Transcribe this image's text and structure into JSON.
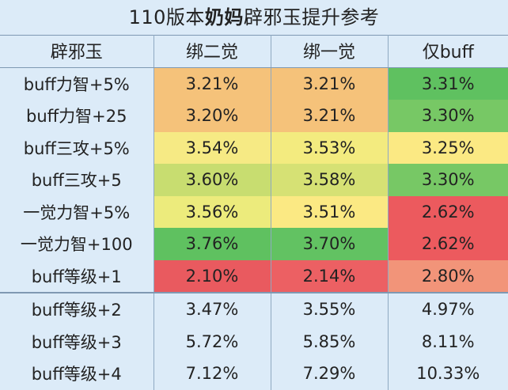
{
  "title": {
    "prefix": "110版本",
    "bold": "奶妈",
    "suffix": "辟邪玉提升参考"
  },
  "headers": [
    "辟邪玉",
    "绑二觉",
    "绑一觉",
    "仅buff"
  ],
  "rows": [
    {
      "label": "buff力智+5%",
      "values": [
        "3.21%",
        "3.21%",
        "3.31%"
      ],
      "colors": [
        "#f5c27a",
        "#f5c27a",
        "#5fc160"
      ]
    },
    {
      "label": "buff力智+25",
      "values": [
        "3.20%",
        "3.21%",
        "3.30%"
      ],
      "colors": [
        "#f5c27a",
        "#f5c27a",
        "#77c865"
      ]
    },
    {
      "label": "buff三攻+5%",
      "values": [
        "3.54%",
        "3.53%",
        "3.25%"
      ],
      "colors": [
        "#f6ea84",
        "#f3eb7f",
        "#fbe983"
      ]
    },
    {
      "label": "buff三攻+5",
      "values": [
        "3.60%",
        "3.58%",
        "3.30%"
      ],
      "colors": [
        "#c8dd70",
        "#d6e174",
        "#77c865"
      ]
    },
    {
      "label": "一觉力智+5%",
      "values": [
        "3.56%",
        "3.51%",
        "2.62%"
      ],
      "colors": [
        "#eceb7c",
        "#fbe983",
        "#ec5a5e"
      ]
    },
    {
      "label": "一觉力智+100",
      "values": [
        "3.76%",
        "3.70%",
        "2.62%"
      ],
      "colors": [
        "#5fc160",
        "#62c262",
        "#ec5a5e"
      ]
    },
    {
      "label": "buff等级+1",
      "values": [
        "2.10%",
        "2.14%",
        "2.80%"
      ],
      "colors": [
        "#e95a5f",
        "#ec6063",
        "#f29479"
      ]
    }
  ],
  "extra_rows": [
    {
      "label": "buff等级+2",
      "values": [
        "3.47%",
        "3.55%",
        "4.97%"
      ]
    },
    {
      "label": "buff等级+3",
      "values": [
        "5.72%",
        "5.85%",
        "8.11%"
      ]
    },
    {
      "label": "buff等级+4",
      "values": [
        "7.12%",
        "7.29%",
        "10.33%"
      ]
    }
  ]
}
